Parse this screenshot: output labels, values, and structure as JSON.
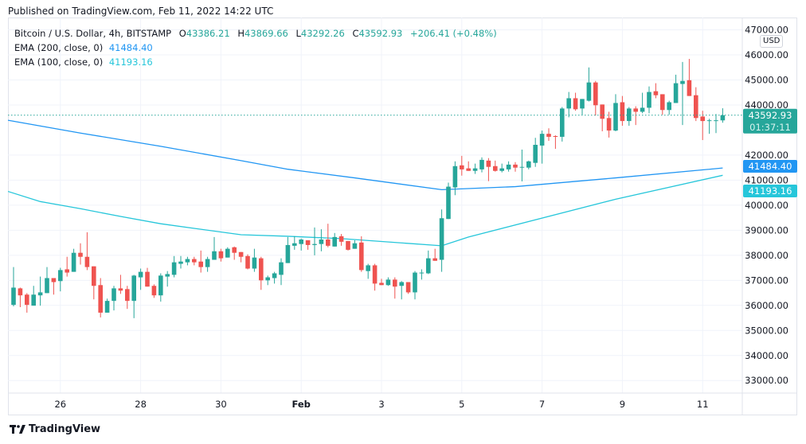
{
  "published": "Published on TradingView.com, Feb 11, 2022 14:22 UTC",
  "footer_brand": "TradingView",
  "legend": {
    "symbol": "Bitcoin / U.S. Dollar, 4h, BITSTAMP",
    "o_label": "O",
    "o": "43386.21",
    "h_label": "H",
    "h": "43869.66",
    "l_label": "L",
    "l": "43292.26",
    "c_label": "C",
    "c": "43592.93",
    "change": "+206.41 (+0.48%)",
    "ema200_label": "EMA (200, close, 0)",
    "ema200": "41484.40",
    "ema100_label": "EMA (100, close, 0)",
    "ema100": "41193.16"
  },
  "currency": "USD",
  "price_tag": {
    "price": "43592.93",
    "countdown": "01:37:11"
  },
  "colors": {
    "up": "#26a69a",
    "down": "#ef5350",
    "ema200": "#2196f3",
    "ema100": "#26c6da",
    "grid": "#f0f3fa"
  },
  "chart_data": {
    "type": "candlestick",
    "interval": "4h",
    "ylim": [
      32600,
      47300
    ],
    "grid": true,
    "y_ticks": [
      "47000.00",
      "46000.00",
      "45000.00",
      "44000.00",
      "42000.00",
      "41000.00",
      "40000.00",
      "39000.00",
      "38000.00",
      "37000.00",
      "36000.00",
      "35000.00",
      "34000.00",
      "33000.00"
    ],
    "x_ticks": [
      {
        "label": "26",
        "candle": 8
      },
      {
        "label": "28",
        "candle": 20
      },
      {
        "label": "30",
        "candle": 32
      },
      {
        "label": "Feb",
        "candle": 44,
        "bold": true
      },
      {
        "label": "3",
        "candle": 56
      },
      {
        "label": "5",
        "candle": 68
      },
      {
        "label": "7",
        "candle": 80
      },
      {
        "label": "9",
        "candle": 92
      },
      {
        "label": "11",
        "candle": 104
      }
    ],
    "ohlc": [
      [
        36020,
        37530,
        35960,
        36710
      ],
      [
        36680,
        36710,
        35930,
        36400
      ],
      [
        36430,
        36490,
        35710,
        36020
      ],
      [
        35990,
        36780,
        35990,
        36430
      ],
      [
        36400,
        37150,
        35990,
        36520
      ],
      [
        36490,
        37530,
        36490,
        37090
      ],
      [
        37090,
        37090,
        36430,
        36930
      ],
      [
        36970,
        37500,
        36560,
        37410
      ],
      [
        37440,
        37940,
        37150,
        37310
      ],
      [
        37340,
        38260,
        37340,
        38100
      ],
      [
        38100,
        38480,
        37630,
        37940
      ],
      [
        37940,
        38920,
        37410,
        37530
      ],
      [
        37560,
        37560,
        36240,
        36780
      ],
      [
        36810,
        37090,
        35520,
        35710
      ],
      [
        35710,
        36270,
        35710,
        36180
      ],
      [
        36180,
        36780,
        35800,
        36680
      ],
      [
        36680,
        37220,
        36460,
        36590
      ],
      [
        36650,
        36780,
        35860,
        36180
      ],
      [
        36180,
        37220,
        35490,
        37190
      ],
      [
        37120,
        37470,
        36620,
        37340
      ],
      [
        37340,
        37500,
        36750,
        36750
      ],
      [
        36780,
        36840,
        36300,
        36400
      ],
      [
        36400,
        37280,
        36150,
        37190
      ],
      [
        37150,
        37370,
        36750,
        37250
      ],
      [
        37220,
        37970,
        37120,
        37720
      ],
      [
        37660,
        37970,
        37470,
        37750
      ],
      [
        37720,
        37940,
        37600,
        37850
      ],
      [
        37850,
        37940,
        37600,
        37720
      ],
      [
        37750,
        38190,
        37310,
        37530
      ],
      [
        37530,
        37940,
        37340,
        37850
      ],
      [
        37820,
        38730,
        37820,
        38160
      ],
      [
        38160,
        38260,
        37750,
        37880
      ],
      [
        37910,
        38320,
        37910,
        38260
      ],
      [
        38320,
        38350,
        37820,
        38100
      ],
      [
        38130,
        38130,
        37720,
        37940
      ],
      [
        37970,
        38040,
        37440,
        37470
      ],
      [
        37470,
        38260,
        37340,
        37910
      ],
      [
        37880,
        37940,
        36620,
        37000
      ],
      [
        37000,
        37190,
        36810,
        37120
      ],
      [
        37090,
        37340,
        36870,
        37280
      ],
      [
        37220,
        37880,
        36810,
        37720
      ],
      [
        37690,
        38730,
        37690,
        38410
      ],
      [
        38380,
        38760,
        38220,
        38480
      ],
      [
        38450,
        38670,
        38190,
        38630
      ],
      [
        38600,
        38600,
        38220,
        38410
      ],
      [
        38410,
        39110,
        38000,
        38450
      ],
      [
        38450,
        39040,
        38160,
        38630
      ],
      [
        38630,
        39260,
        38320,
        38380
      ],
      [
        38350,
        38890,
        38350,
        38730
      ],
      [
        38760,
        38850,
        38380,
        38540
      ],
      [
        38570,
        38570,
        38190,
        38220
      ],
      [
        38260,
        38600,
        38260,
        38480
      ],
      [
        38510,
        38760,
        37340,
        37410
      ],
      [
        37370,
        37660,
        37060,
        37600
      ],
      [
        37600,
        37660,
        36590,
        36870
      ],
      [
        36900,
        37060,
        36810,
        36810
      ],
      [
        36810,
        37120,
        36780,
        37030
      ],
      [
        37030,
        37120,
        36270,
        36750
      ],
      [
        36780,
        36970,
        36240,
        36930
      ],
      [
        36930,
        36930,
        36460,
        36520
      ],
      [
        36520,
        37370,
        36240,
        37310
      ],
      [
        37280,
        37440,
        37030,
        37310
      ],
      [
        37280,
        38190,
        37250,
        37880
      ],
      [
        37880,
        38260,
        37780,
        37780
      ],
      [
        37820,
        39830,
        37340,
        39480
      ],
      [
        39450,
        40900,
        39450,
        40740
      ],
      [
        40710,
        41750,
        40400,
        41560
      ],
      [
        41590,
        41970,
        41180,
        41430
      ],
      [
        41470,
        41750,
        41370,
        41370
      ],
      [
        41370,
        41660,
        41250,
        41470
      ],
      [
        41430,
        41910,
        41310,
        41810
      ],
      [
        41780,
        41880,
        40960,
        41530
      ],
      [
        41560,
        41780,
        41340,
        41370
      ],
      [
        41370,
        41660,
        41310,
        41470
      ],
      [
        41430,
        41750,
        41340,
        41620
      ],
      [
        41620,
        41720,
        41340,
        41500
      ],
      [
        41500,
        42220,
        40950,
        41530
      ],
      [
        41500,
        41780,
        41430,
        41750
      ],
      [
        41690,
        42690,
        41530,
        42410
      ],
      [
        42380,
        42980,
        41660,
        42850
      ],
      [
        42850,
        43070,
        42570,
        42730
      ],
      [
        42760,
        42790,
        42250,
        42730
      ],
      [
        42730,
        43920,
        42540,
        43860
      ],
      [
        43860,
        44520,
        43510,
        44270
      ],
      [
        44270,
        44490,
        43770,
        43830
      ],
      [
        43860,
        44240,
        43610,
        44240
      ],
      [
        44170,
        45500,
        44140,
        44900
      ],
      [
        44900,
        44960,
        43580,
        43990
      ],
      [
        44020,
        44020,
        42950,
        43450
      ],
      [
        43480,
        43730,
        42700,
        42980
      ],
      [
        42980,
        44430,
        42950,
        44080
      ],
      [
        44110,
        44360,
        43170,
        43360
      ],
      [
        43360,
        43920,
        43170,
        43860
      ],
      [
        43860,
        43950,
        43200,
        43730
      ],
      [
        43730,
        44490,
        43670,
        43890
      ],
      [
        43890,
        44740,
        43670,
        44520
      ],
      [
        44550,
        44870,
        44270,
        44390
      ],
      [
        44430,
        44430,
        43610,
        43800
      ],
      [
        43800,
        44170,
        43610,
        44110
      ],
      [
        44080,
        45210,
        44080,
        44870
      ],
      [
        44840,
        45720,
        43200,
        44960
      ],
      [
        44990,
        45840,
        44360,
        44360
      ],
      [
        44390,
        44710,
        43360,
        43480
      ],
      [
        43540,
        43770,
        42600,
        43360
      ],
      [
        43360,
        43450,
        42850,
        43390
      ],
      [
        43390,
        43640,
        42880,
        43390
      ],
      [
        43386.21,
        43869.66,
        43292.26,
        43592.93
      ]
    ],
    "ema200": [
      [
        1,
        43390
      ],
      [
        11,
        42880
      ],
      [
        23,
        42350
      ],
      [
        35,
        41780
      ],
      [
        42,
        41435
      ],
      [
        52,
        41090
      ],
      [
        65,
        40620
      ],
      [
        76,
        40740
      ],
      [
        91,
        41090
      ],
      [
        107,
        41484.4
      ]
    ],
    "ema100": [
      [
        1,
        40550
      ],
      [
        5,
        40145
      ],
      [
        11,
        39860
      ],
      [
        17,
        39550
      ],
      [
        23,
        39260
      ],
      [
        28,
        39075
      ],
      [
        35,
        38820
      ],
      [
        42,
        38760
      ],
      [
        50,
        38665
      ],
      [
        65,
        38380
      ],
      [
        69,
        38730
      ],
      [
        91,
        40240
      ],
      [
        107,
        41193.16
      ]
    ]
  }
}
